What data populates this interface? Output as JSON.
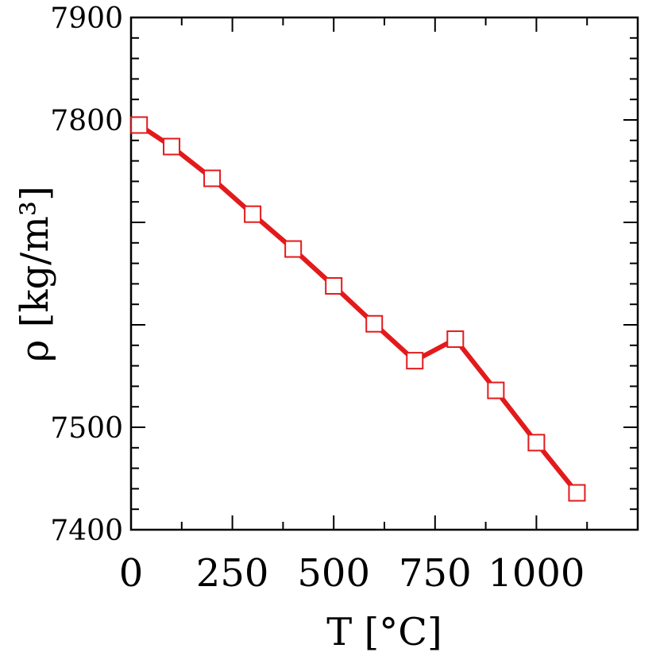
{
  "chart_data": {
    "type": "line",
    "title": "",
    "xlabel": "T [°C]",
    "ylabel": "ρ [kg/m³]",
    "xlim": [
      0,
      1250
    ],
    "ylim": [
      7400,
      7900
    ],
    "xticks": [
      0,
      250,
      500,
      750,
      1000
    ],
    "xtick_labels": [
      "0",
      "250",
      "500",
      "750",
      "1000"
    ],
    "yticks": [
      7400,
      7500,
      7800,
      7900
    ],
    "ytick_labels": [
      "7400",
      "7500",
      "7800",
      "7900"
    ],
    "grid": false,
    "marker": "open-square",
    "color": "#e31a1c",
    "series": [
      {
        "x": [
          20,
          100,
          200,
          300,
          400,
          500,
          600,
          700,
          800,
          900,
          1000,
          1100
        ],
        "y": [
          7795,
          7774,
          7743,
          7708,
          7674,
          7638,
          7601,
          7565,
          7586,
          7536,
          7485,
          7436
        ]
      }
    ]
  }
}
